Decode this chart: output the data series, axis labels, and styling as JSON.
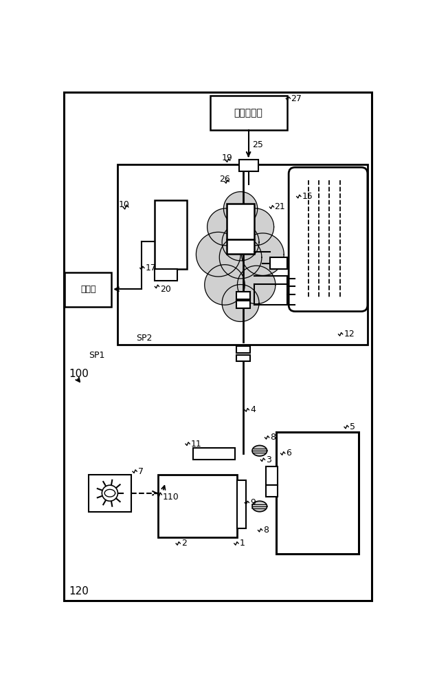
{
  "bg": "#ffffff",
  "lc": "#000000",
  "cloud_fill": "#d0d0d0",
  "fw": 6.2,
  "fh": 10.0,
  "dpi": 100,
  "labels": {
    "air_supply": "空气供给源",
    "exhaust": "排气线",
    "n27": "27",
    "n19": "19",
    "n25": "25",
    "n26": "26",
    "n21": "21",
    "n10": "10",
    "n15": "15",
    "n12": "12",
    "n17": "17",
    "n20": "20",
    "n100": "100",
    "n120": "120",
    "nSP1": "SP1",
    "nSP2": "SP2",
    "n4": "4",
    "n5": "5",
    "n6": "6",
    "n3": "3",
    "n7": "7",
    "n8": "8",
    "n9": "9",
    "n11": "11",
    "n1": "1",
    "n2": "2",
    "n110": "110"
  }
}
